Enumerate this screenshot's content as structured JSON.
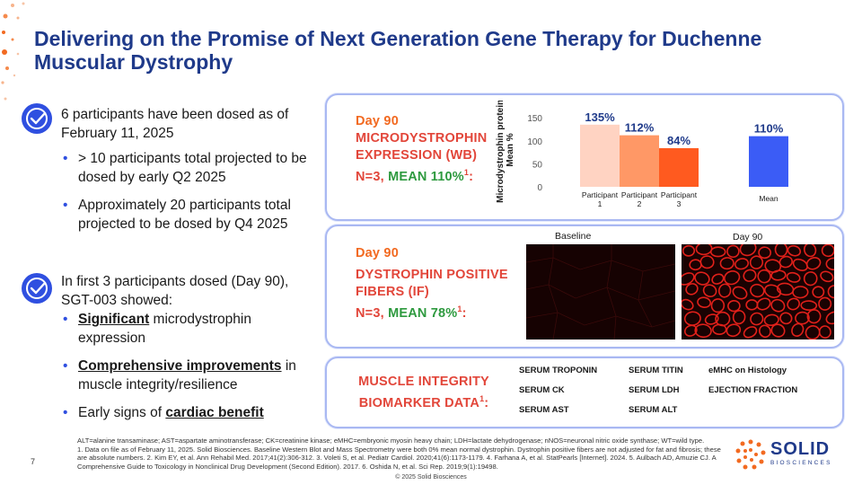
{
  "slide": {
    "title": "Delivering on the Promise of Next Generation Gene Therapy for Duchenne Muscular Dystrophy",
    "page_number": "7",
    "copyright": "© 2025 Solid Biosciences"
  },
  "left": {
    "block1": {
      "lead": "6 participants have been dosed as of February 11, 2025",
      "bullets": [
        "> 10 participants total projected to be dosed by early Q2 2025",
        "Approximately 20 participants total projected to be dosed by Q4 2025"
      ]
    },
    "block2": {
      "lead": "In first 3 participants dosed (Day 90), SGT-003 showed:",
      "bullet1": {
        "bold": "Significant",
        "rest": " microdystrophin expression"
      },
      "bullet2": {
        "bold": "Comprehensive improvements",
        "rest": " in muscle integrity/resilience"
      },
      "bullet3": {
        "pre": "Early signs of ",
        "bold": "cardiac benefit"
      }
    }
  },
  "panel1": {
    "day": "Day 90",
    "line1": "MICRODYSTROPHIN",
    "line2": "EXPRESSION (WB)",
    "n_text": "N=3, ",
    "mean_text": "MEAN 110%",
    "sup": "1",
    "colon": ":"
  },
  "chart_data": {
    "type": "bar",
    "categories": [
      "Participant 1",
      "Participant 2",
      "Participant 3",
      "Mean"
    ],
    "values": [
      135,
      112,
      84,
      110
    ],
    "data_labels": [
      "135%",
      "112%",
      "84%",
      "110%"
    ],
    "ylabel": "Microdystrophin protein, Mean %",
    "yticks": [
      0,
      50,
      100,
      150
    ],
    "ylim": [
      0,
      160
    ],
    "colors": [
      "#ffd3c2",
      "#ff9866",
      "#ff5a1f",
      "#3b5cf6"
    ],
    "label_colors": [
      "#1f3a8a",
      "#1f3a8a",
      "#1f3a8a",
      "#1f3a8a"
    ]
  },
  "panel2": {
    "day": "Day 90",
    "line1": "DYSTROPHIN POSITIVE",
    "line2": "FIBERS (IF)",
    "n_text": "N=3, ",
    "mean_text": "MEAN 78%",
    "sup": "1",
    "colon": ":",
    "baseline_label": "Baseline",
    "day90_label": "Day 90"
  },
  "panel3": {
    "line1": "MUSCLE INTEGRITY",
    "line2": "BIOMARKER DATA",
    "sup": "1",
    "colon": ":",
    "grid": [
      [
        "SERUM TROPONIN",
        "SERUM TITIN",
        "eMHC on Histology"
      ],
      [
        "SERUM CK",
        "SERUM LDH",
        "EJECTION FRACTION"
      ],
      [
        "SERUM AST",
        "SERUM ALT",
        ""
      ]
    ]
  },
  "footnotes": {
    "abbrev": "ALT=alanine transaminase; AST=aspartate aminotransferase; CK=creatinine kinase; eMHC=embryonic myosin heavy chain; LDH=lactate dehydrogenase; nNOS=neuronal nitric oxide synthase; WT=wild type.",
    "refs": "1. Data on file as of February 11, 2025. Solid Biosciences. Baseline Western Blot and Mass Spectrometry were both 0% mean normal dystrophin. Dystrophin positive fibers are not adjusted for fat and fibrosis; these are absolute numbers. 2. Kim EY, et al. Ann Rehabil Med. 2017;41(2):306-312. 3. Voleti S, et al. Pediatr Cardiol. 2020;41(6):1173-1179. 4. Farhana A, et al. StatPearls [Internet]. 2024. 5. Aulbach AD, Amuzie CJ. A Comprehensive Guide to Toxicology in Nonclinical Drug Development (Second Edition). 2017. 6. Oshida N, et al. Sci Rep. 2019;9(1):19498."
  },
  "logo": {
    "word": "SOLID",
    "sub": "BIOSCIENCES"
  }
}
